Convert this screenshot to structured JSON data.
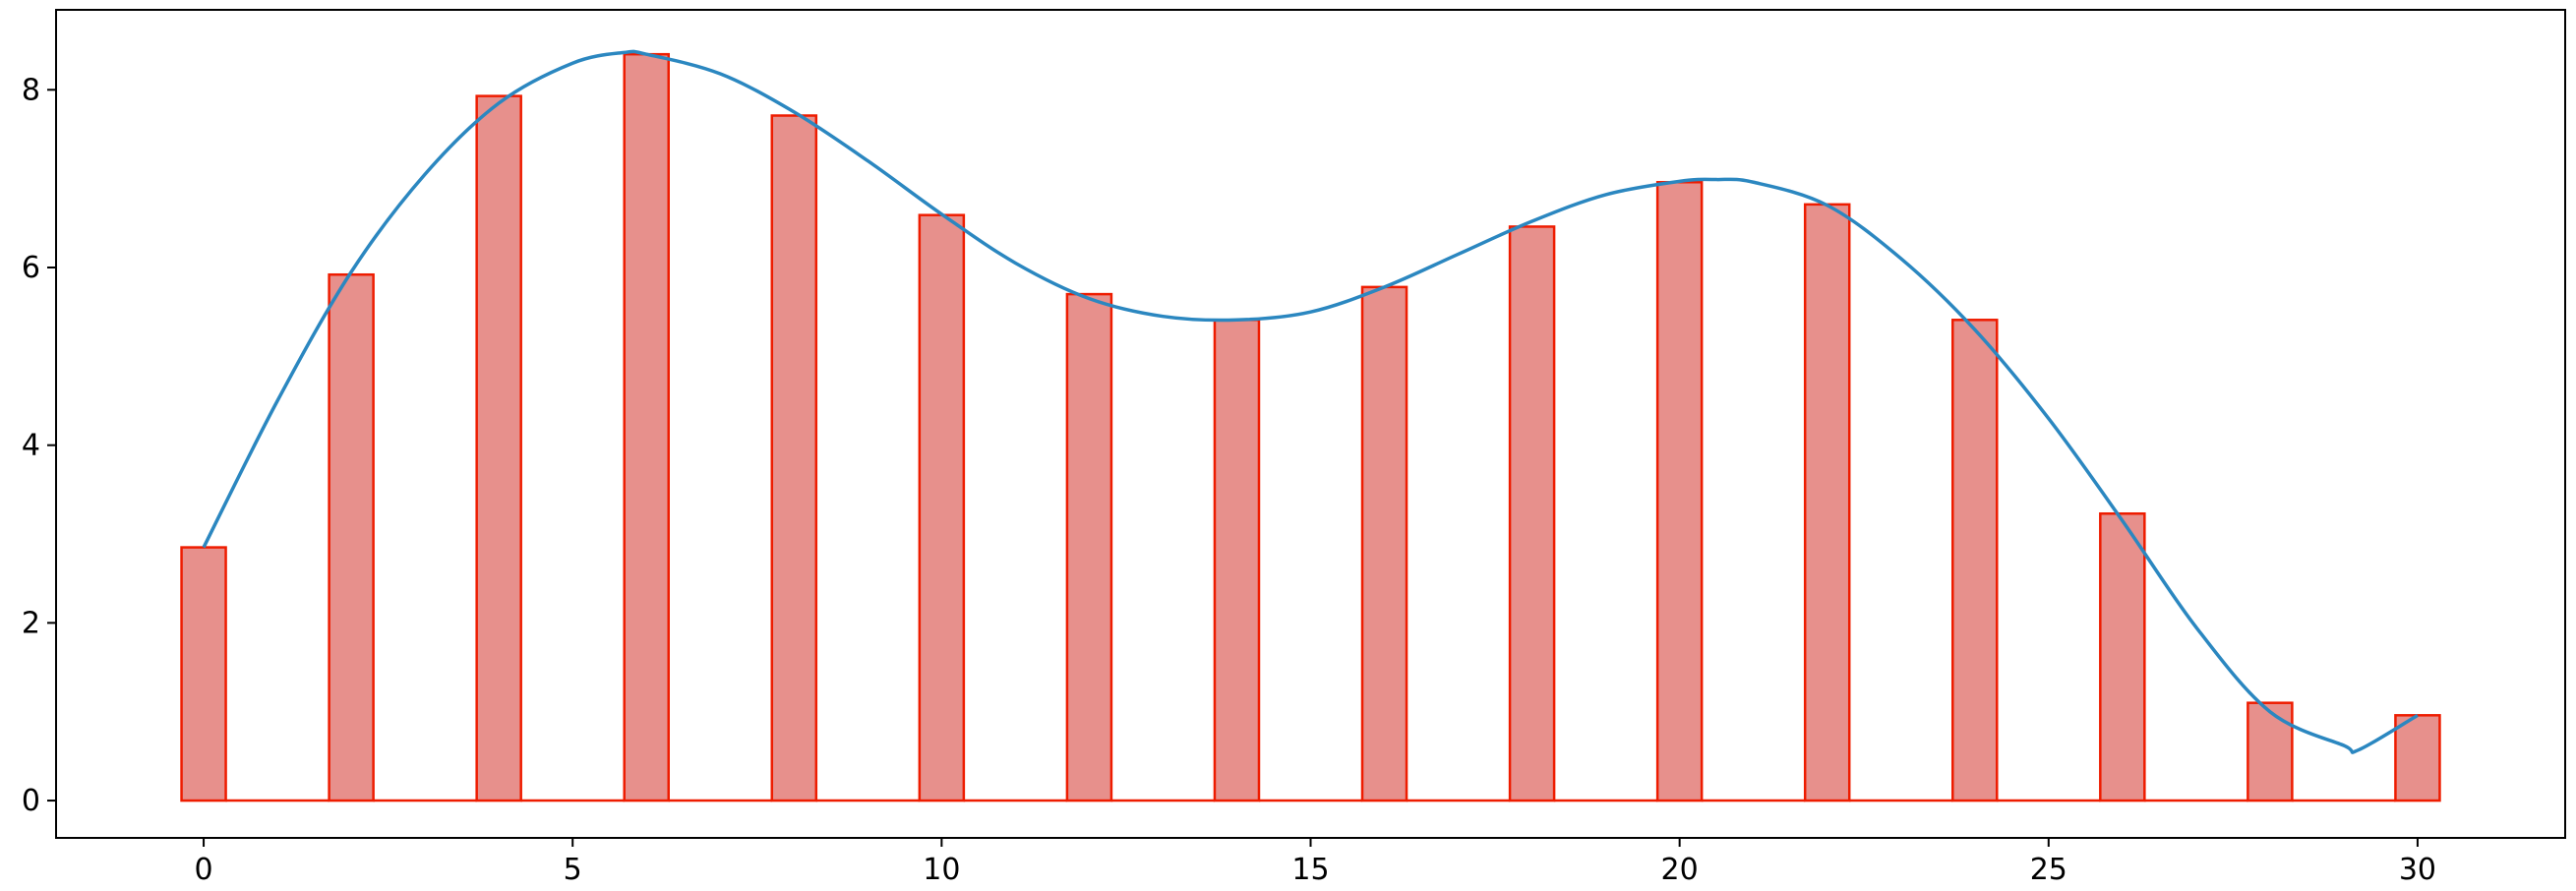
{
  "chart_data": {
    "type": "bar",
    "title": "",
    "xlabel": "",
    "ylabel": "",
    "xlim": [
      -2.0,
      32.0
    ],
    "ylim": [
      -0.42,
      8.9
    ],
    "grid": false,
    "legend": "none",
    "bar_width": 0.6,
    "x": [
      0,
      2,
      4,
      6,
      8,
      10,
      12,
      14,
      16,
      18,
      20,
      22,
      24,
      26,
      28,
      30
    ],
    "values": [
      2.85,
      5.92,
      7.93,
      8.4,
      7.71,
      6.59,
      5.7,
      5.41,
      5.78,
      6.46,
      6.96,
      6.71,
      5.41,
      3.23,
      1.1,
      0.96
    ],
    "series": [
      {
        "type": "step",
        "color": "#ee1c00",
        "fill": "#e7908c",
        "x": [
          0,
          2,
          4,
          6,
          8,
          10,
          12,
          14,
          16,
          18,
          20,
          22,
          24,
          26,
          28,
          30
        ],
        "values": [
          2.85,
          5.92,
          7.93,
          8.4,
          7.71,
          6.59,
          5.7,
          5.41,
          5.78,
          6.46,
          6.96,
          6.71,
          5.41,
          3.23,
          1.1,
          0.96
        ]
      },
      {
        "type": "line",
        "color": "#2b87c0",
        "x": [
          0,
          1,
          2,
          3,
          4,
          5,
          5.7,
          6,
          7,
          8,
          9,
          10,
          11,
          12,
          13,
          14,
          15,
          16,
          17,
          18,
          19,
          20,
          20.5,
          21,
          22,
          23,
          24,
          25,
          26,
          27,
          28,
          29,
          29.2,
          30
        ],
        "values": [
          2.85,
          4.5,
          5.95,
          7.05,
          7.85,
          8.3,
          8.42,
          8.4,
          8.18,
          7.75,
          7.2,
          6.6,
          6.05,
          5.65,
          5.45,
          5.41,
          5.5,
          5.78,
          6.15,
          6.52,
          6.82,
          6.97,
          6.99,
          6.96,
          6.7,
          6.1,
          5.3,
          4.3,
          3.15,
          1.95,
          1.0,
          0.62,
          0.57,
          0.96
        ]
      }
    ],
    "xticks": [
      0,
      5,
      10,
      15,
      20,
      25,
      30
    ],
    "xtick_labels": [
      "0",
      "5",
      "10",
      "15",
      "20",
      "25",
      "30"
    ],
    "yticks": [
      0,
      2,
      4,
      6,
      8
    ],
    "ytick_labels": [
      "0",
      "2",
      "4",
      "6",
      "8"
    ]
  }
}
